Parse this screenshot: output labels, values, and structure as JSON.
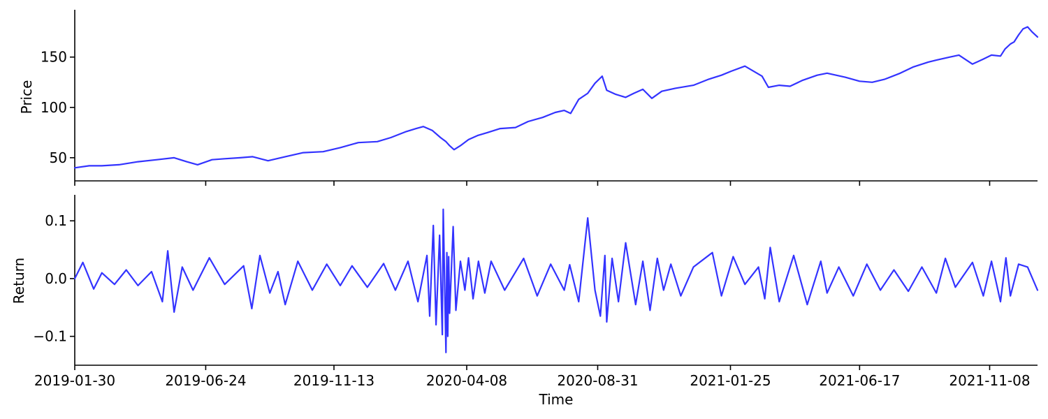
{
  "colors": {
    "series": "#3333ff",
    "axis": "#000000",
    "background": "#ffffff"
  },
  "chart_data": [
    {
      "type": "line",
      "panel": "top",
      "xlabel": "",
      "ylabel": "Price",
      "x_range": [
        "2019-01-30",
        "2021-12-31"
      ],
      "ylim": [
        27,
        197
      ],
      "yticks": [
        50,
        100,
        150
      ],
      "ytick_labels": [
        "50",
        "100",
        "150"
      ],
      "grid": false,
      "series": [
        {
          "x": [
            "2019-01-30",
            "2019-02-15",
            "2019-03-01",
            "2019-03-20",
            "2019-04-10",
            "2019-05-01",
            "2019-05-20",
            "2019-06-03",
            "2019-06-15",
            "2019-07-01",
            "2019-07-15",
            "2019-08-01",
            "2019-08-15",
            "2019-09-01",
            "2019-09-20",
            "2019-10-10",
            "2019-11-01",
            "2019-11-20",
            "2019-12-10",
            "2019-12-31",
            "2020-01-15",
            "2020-02-01",
            "2020-02-12",
            "2020-02-20",
            "2020-03-01",
            "2020-03-10",
            "2020-03-16",
            "2020-03-20",
            "2020-03-25",
            "2020-04-01",
            "2020-04-10",
            "2020-04-20",
            "2020-05-01",
            "2020-05-15",
            "2020-06-01",
            "2020-06-15",
            "2020-07-01",
            "2020-07-15",
            "2020-07-25",
            "2020-08-01",
            "2020-08-10",
            "2020-08-20",
            "2020-08-28",
            "2020-09-05",
            "2020-09-10",
            "2020-09-20",
            "2020-10-01",
            "2020-10-10",
            "2020-10-20",
            "2020-10-30",
            "2020-11-10",
            "2020-11-25",
            "2020-12-15",
            "2021-01-01",
            "2021-01-15",
            "2021-01-26",
            "2021-02-10",
            "2021-03-01",
            "2021-03-08",
            "2021-03-20",
            "2021-04-01",
            "2021-04-15",
            "2021-05-01",
            "2021-05-12",
            "2021-06-01",
            "2021-06-17",
            "2021-07-01",
            "2021-07-15",
            "2021-08-01",
            "2021-08-15",
            "2021-09-01",
            "2021-09-10",
            "2021-09-25",
            "2021-10-05",
            "2021-10-20",
            "2021-11-01",
            "2021-11-10",
            "2021-11-20",
            "2021-11-25",
            "2021-12-01",
            "2021-12-05",
            "2021-12-10",
            "2021-12-15",
            "2021-12-20",
            "2021-12-25",
            "2021-12-31"
          ],
          "y": [
            40,
            42,
            42,
            43,
            46,
            48,
            50,
            46,
            43,
            48,
            49,
            50,
            51,
            47,
            51,
            55,
            56,
            60,
            65,
            66,
            70,
            76,
            79,
            81,
            77,
            70,
            66,
            62,
            58,
            62,
            68,
            72,
            75,
            79,
            80,
            86,
            90,
            95,
            97,
            94,
            108,
            114,
            124,
            131,
            117,
            113,
            110,
            114,
            118,
            109,
            116,
            119,
            122,
            128,
            132,
            136,
            141,
            131,
            120,
            122,
            121,
            127,
            132,
            134,
            130,
            126,
            125,
            128,
            134,
            140,
            145,
            147,
            150,
            152,
            143,
            148,
            152,
            151,
            158,
            163,
            165,
            172,
            178,
            180,
            175,
            170
          ]
        }
      ]
    },
    {
      "type": "line",
      "panel": "bottom",
      "xlabel": "Time",
      "ylabel": "Return",
      "x_range": [
        "2019-01-30",
        "2021-12-31"
      ],
      "ylim": [
        -0.15,
        0.145
      ],
      "yticks": [
        -0.1,
        0.0,
        0.1
      ],
      "ytick_labels": [
        "−0.1",
        "0.0",
        "0.1"
      ],
      "xticks": [
        "2019-01-30",
        "2019-06-24",
        "2019-11-13",
        "2020-04-08",
        "2020-08-31",
        "2021-01-25",
        "2021-06-17",
        "2021-11-08"
      ],
      "grid": false,
      "series": [
        {
          "x": [
            "2019-01-30",
            "2019-02-08",
            "2019-02-20",
            "2019-03-01",
            "2019-03-15",
            "2019-03-28",
            "2019-04-10",
            "2019-04-25",
            "2019-05-07",
            "2019-05-13",
            "2019-05-20",
            "2019-05-29",
            "2019-06-10",
            "2019-06-28",
            "2019-07-15",
            "2019-08-05",
            "2019-08-14",
            "2019-08-23",
            "2019-09-03",
            "2019-09-12",
            "2019-09-20",
            "2019-10-04",
            "2019-10-20",
            "2019-11-05",
            "2019-11-20",
            "2019-12-03",
            "2019-12-20",
            "2020-01-07",
            "2020-01-20",
            "2020-02-03",
            "2020-02-14",
            "2020-02-24",
            "2020-02-27",
            "2020-03-02",
            "2020-03-05",
            "2020-03-09",
            "2020-03-12",
            "2020-03-13",
            "2020-03-16",
            "2020-03-17",
            "2020-03-18",
            "2020-03-19",
            "2020-03-20",
            "2020-03-24",
            "2020-03-27",
            "2020-04-01",
            "2020-04-06",
            "2020-04-10",
            "2020-04-15",
            "2020-04-21",
            "2020-04-28",
            "2020-05-05",
            "2020-05-20",
            "2020-06-10",
            "2020-06-25",
            "2020-07-10",
            "2020-07-25",
            "2020-07-31",
            "2020-08-10",
            "2020-08-20",
            "2020-08-28",
            "2020-09-03",
            "2020-09-08",
            "2020-09-10",
            "2020-09-16",
            "2020-09-23",
            "2020-10-01",
            "2020-10-12",
            "2020-10-20",
            "2020-10-28",
            "2020-11-05",
            "2020-11-12",
            "2020-11-20",
            "2020-12-01",
            "2020-12-15",
            "2021-01-05",
            "2021-01-15",
            "2021-01-28",
            "2021-02-10",
            "2021-02-25",
            "2021-03-04",
            "2021-03-10",
            "2021-03-20",
            "2021-04-05",
            "2021-04-20",
            "2021-05-05",
            "2021-05-12",
            "2021-05-25",
            "2021-06-10",
            "2021-06-25",
            "2021-07-10",
            "2021-07-25",
            "2021-08-10",
            "2021-08-25",
            "2021-09-10",
            "2021-09-20",
            "2021-10-01",
            "2021-10-20",
            "2021-11-01",
            "2021-11-10",
            "2021-11-20",
            "2021-11-26",
            "2021-12-01",
            "2021-12-10",
            "2021-12-20",
            "2021-12-31"
          ],
          "y": [
            0.0,
            0.028,
            -0.018,
            0.01,
            -0.01,
            0.015,
            -0.012,
            0.012,
            -0.04,
            0.048,
            -0.058,
            0.02,
            -0.02,
            0.036,
            -0.01,
            0.022,
            -0.052,
            0.04,
            -0.025,
            0.012,
            -0.045,
            0.03,
            -0.02,
            0.025,
            -0.012,
            0.022,
            -0.015,
            0.026,
            -0.02,
            0.03,
            -0.04,
            0.04,
            -0.065,
            0.092,
            -0.08,
            0.075,
            -0.097,
            0.12,
            -0.128,
            0.045,
            -0.1,
            0.038,
            -0.06,
            0.09,
            -0.055,
            0.03,
            -0.02,
            0.036,
            -0.035,
            0.03,
            -0.025,
            0.03,
            -0.02,
            0.035,
            -0.03,
            0.025,
            -0.02,
            0.024,
            -0.04,
            0.105,
            -0.02,
            -0.065,
            0.04,
            -0.075,
            0.035,
            -0.04,
            0.062,
            -0.045,
            0.03,
            -0.055,
            0.035,
            -0.02,
            0.025,
            -0.03,
            0.02,
            0.045,
            -0.03,
            0.038,
            -0.01,
            0.02,
            -0.035,
            0.054,
            -0.04,
            0.04,
            -0.045,
            0.03,
            -0.025,
            0.02,
            -0.03,
            0.025,
            -0.02,
            0.015,
            -0.022,
            0.02,
            -0.025,
            0.035,
            -0.015,
            0.028,
            -0.03,
            0.03,
            -0.04,
            0.036,
            -0.03,
            0.025,
            0.02,
            -0.02
          ]
        }
      ]
    }
  ]
}
